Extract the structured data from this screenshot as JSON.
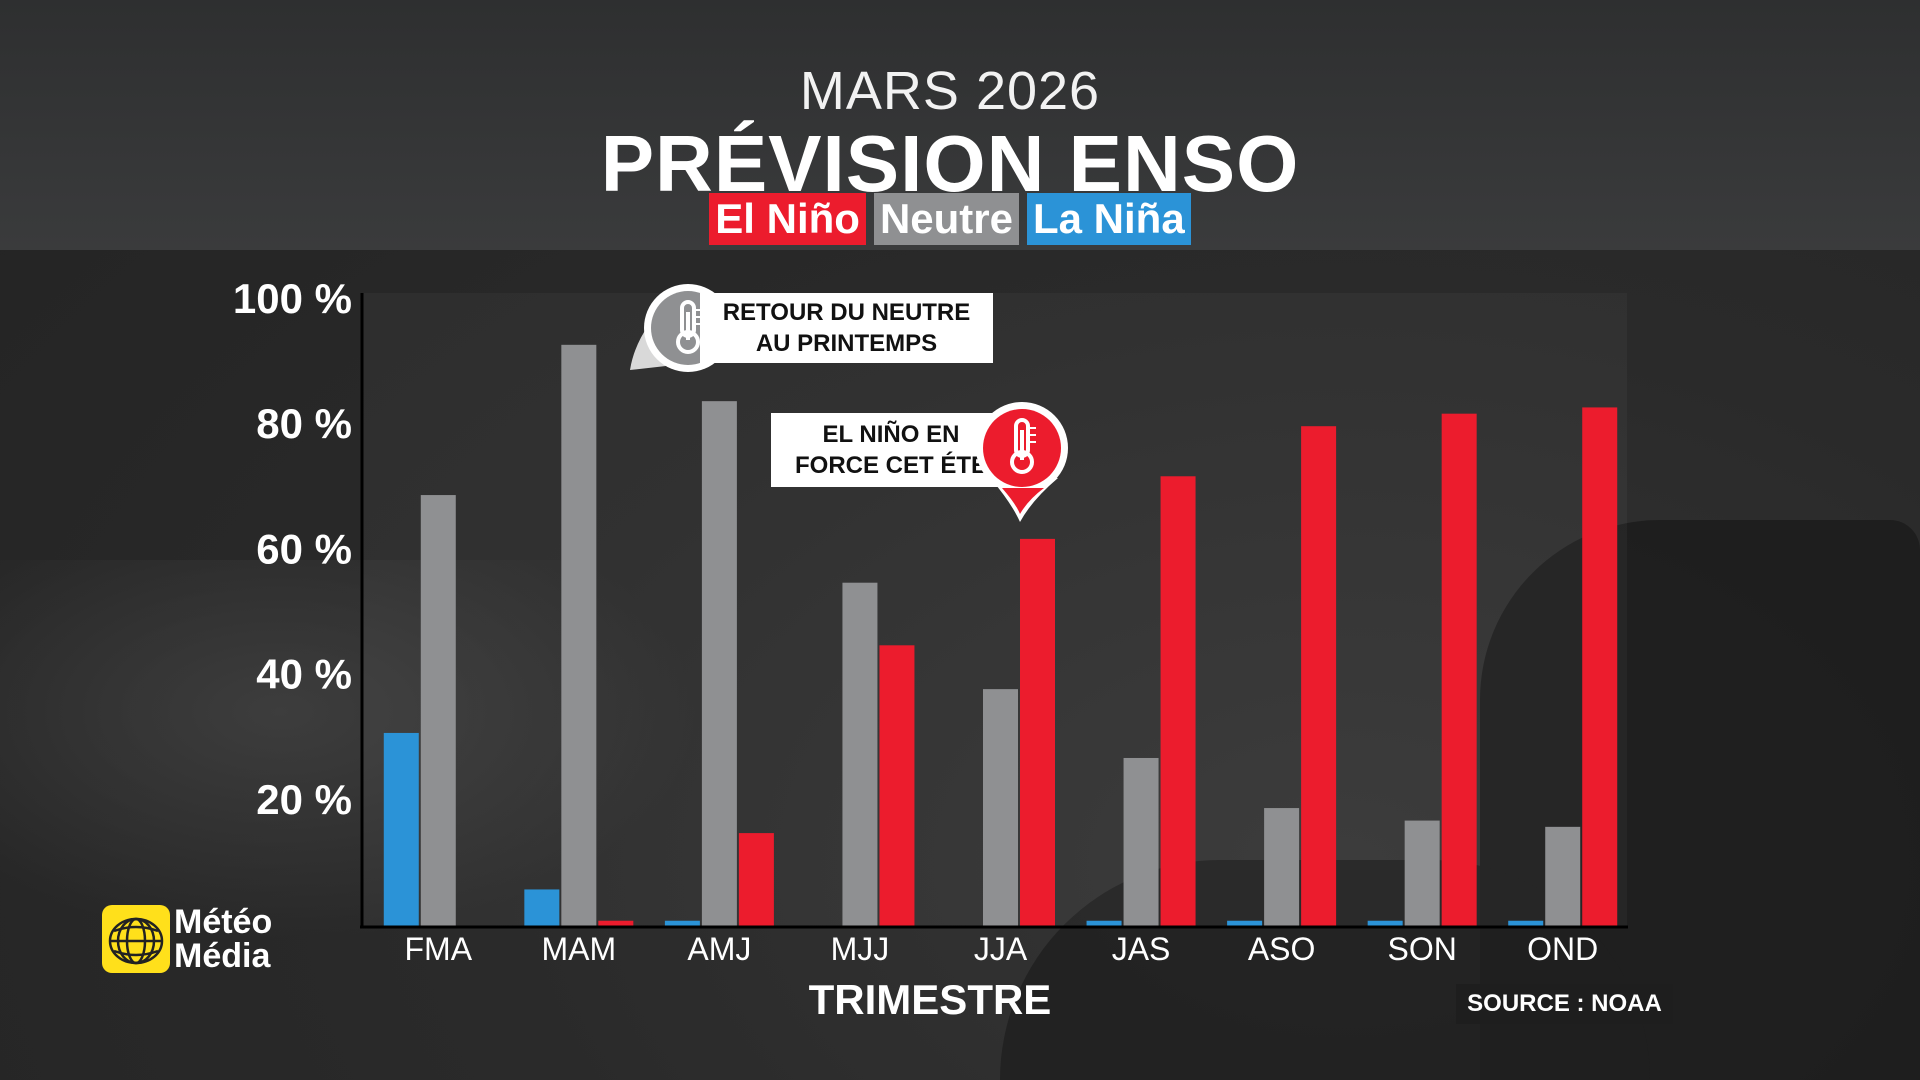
{
  "header": {
    "date": "MARS 2026",
    "title": "PRÉVISION ENSO",
    "legend": [
      "El Niño",
      "Neutre",
      "La Niña"
    ]
  },
  "colors": {
    "el_nino": "#ec1c2d",
    "neutral": "#8f9092",
    "la_nina": "#2b93d7"
  },
  "chart_data": {
    "type": "bar",
    "categories": [
      "FMA",
      "MAM",
      "AMJ",
      "MJJ",
      "JJA",
      "JAS",
      "ASO",
      "SON",
      "OND"
    ],
    "series": [
      {
        "name": "La Niña",
        "values": [
          31,
          6,
          1,
          0,
          0,
          1,
          1,
          1,
          1
        ]
      },
      {
        "name": "Neutre",
        "values": [
          69,
          93,
          84,
          55,
          38,
          27,
          19,
          17,
          16
        ]
      },
      {
        "name": "El Niño",
        "values": [
          0,
          1,
          15,
          45,
          62,
          72,
          80,
          82,
          83
        ]
      }
    ],
    "yticks": [
      "100 %",
      "80 %",
      "60 %",
      "40 %",
      "20 %"
    ],
    "ylim": [
      0,
      100
    ],
    "xlabel": "TRIMESTRE",
    "ylabel": ""
  },
  "callouts": {
    "neutral_return_line1": "RETOUR DU NEUTRE",
    "neutral_return_line2": "AU PRINTEMPS",
    "el_nino_line1": "EL NIÑO EN",
    "el_nino_line2": "FORCE CET ÉTÉ",
    "icon": "thermometer-icon"
  },
  "logo": {
    "line1": "Météo",
    "line2": "Média"
  },
  "source": "SOURCE : NOAA"
}
